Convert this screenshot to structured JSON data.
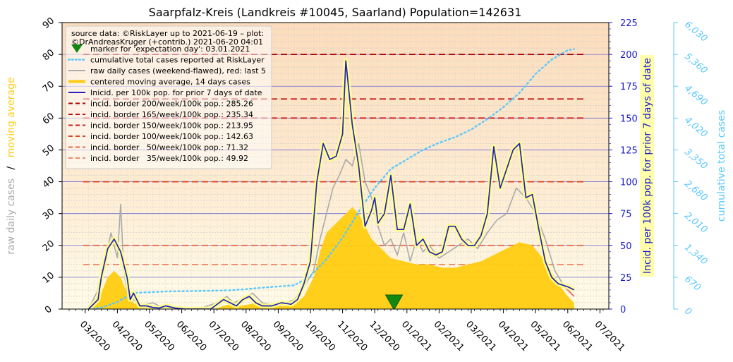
{
  "chart_data": {
    "type": "line",
    "title": "Saarpfalz-Kreis (Landkreis #10045, Saarland) Population=142631",
    "left_axis": {
      "label_part1": "raw daily cases",
      "label_sep": "/",
      "label_part2": "moving average",
      "ylim": [
        0,
        90
      ],
      "ticks": [
        "0",
        "10",
        "20",
        "30",
        "40",
        "50",
        "60",
        "70",
        "80",
        "90"
      ]
    },
    "right_axis": {
      "label": "Incid. per 100k pop. for prior 7 days of date",
      "ylim": [
        0,
        225
      ],
      "ticks": [
        "0",
        "25",
        "50",
        "75",
        "100",
        "125",
        "150",
        "175",
        "200",
        "225"
      ]
    },
    "cumulative_axis": {
      "label": "cumulative total cases",
      "ylim": [
        0,
        6030
      ],
      "ticks": [
        "0",
        "670",
        "1,340",
        "2,010",
        "2,680",
        "3,350",
        "4,020",
        "4,690",
        "5,360",
        "6,030"
      ]
    },
    "x_axis": {
      "ticks": [
        "03/2020",
        "04/2020",
        "05/2020",
        "06/2020",
        "07/2020",
        "08/2020",
        "09/2020",
        "10/2020",
        "11/2020",
        "12/2020",
        "01/2021",
        "02/2021",
        "03/2021",
        "04/2021",
        "05/2021",
        "06/2021",
        "07/2021"
      ]
    },
    "legend": {
      "placement": "top-left",
      "source_line1": "source data: ©RiskLayer up to 2021-06-19 – plot:",
      "source_line2": "©DrAndreasKruger (+contrib.) 2021-06-20 04:01",
      "entries": [
        {
          "label": "marker for 'expectation day': 03.01.2021",
          "color": "#118811",
          "style": "marker"
        },
        {
          "label": "cumulative total cases reported at RiskLayer",
          "color": "#5ac8ff",
          "style": "dotted"
        },
        {
          "label": "raw daily cases (weekend-flawed), red: last 5",
          "color": "#aaaaaa",
          "style": "solid"
        },
        {
          "label": "centered moving average, 14 days cases",
          "color": "#ffcc11",
          "style": "thick"
        },
        {
          "label": "Inicid. per 100k pop. for prior 7 days of date",
          "color": "#2222bb",
          "style": "solid"
        },
        {
          "label": "incid. border 200/week/100k pop.: 285.26",
          "color": "#aa0000",
          "style": "dashed"
        },
        {
          "label": "incid. border 165/week/100k pop.: 235.34",
          "color": "#c01010",
          "style": "dashed"
        },
        {
          "label": "incid. border 150/week/100k pop.: 213.95",
          "color": "#cc2222",
          "style": "dashed"
        },
        {
          "label": "incid. border 100/week/100k pop.: 142.63",
          "color": "#dd4422",
          "style": "dashed"
        },
        {
          "label": "incid. border   50/week/100k pop.: 71.32",
          "color": "#e86644",
          "style": "dashed"
        },
        {
          "label": "incid. border   35/week/100k pop.: 49.92",
          "color": "#ee8866",
          "style": "dashed"
        }
      ]
    },
    "borders_left_units": [
      {
        "name": "200",
        "value": 80.0,
        "color": "#aa0000"
      },
      {
        "name": "165",
        "value": 66.0,
        "color": "#c01010"
      },
      {
        "name": "150",
        "value": 60.0,
        "color": "#cc2222"
      },
      {
        "name": "100",
        "value": 40.0,
        "color": "#dd4422"
      },
      {
        "name": "50",
        "value": 20.0,
        "color": "#e86644"
      },
      {
        "name": "35",
        "value": 14.0,
        "color": "#ee8866"
      }
    ],
    "expectation_marker": {
      "month_index": 10.1,
      "value": 0
    },
    "incidence_series": {
      "name": "Inicid. per 100k pop. for prior 7 days of date",
      "x_month_index": [
        0.6,
        0.9,
        1.0,
        1.2,
        1.4,
        1.6,
        1.8,
        1.9,
        2.0,
        2.2,
        2.4,
        2.6,
        2.8,
        3.0,
        3.3,
        3.6,
        4.0,
        4.4,
        4.8,
        5.0,
        5.2,
        5.4,
        5.6,
        5.8,
        6.0,
        6.3,
        6.6,
        6.9,
        7.1,
        7.3,
        7.5,
        7.7,
        7.9,
        8.1,
        8.3,
        8.5,
        8.6,
        8.8,
        9.0,
        9.2,
        9.4,
        9.5,
        9.6,
        9.8,
        10.0,
        10.2,
        10.4,
        10.6,
        10.8,
        11.0,
        11.2,
        11.4,
        11.6,
        11.8,
        12.0,
        12.2,
        12.4,
        12.6,
        12.8,
        13.0,
        13.2,
        13.4,
        13.6,
        13.8,
        14.0,
        14.2,
        14.4,
        14.6,
        14.8,
        15.0,
        15.2,
        15.5,
        15.7
      ],
      "values": [
        0,
        3,
        10,
        19,
        22,
        18,
        10,
        3,
        5,
        1,
        1,
        0.5,
        0.3,
        1,
        0.3,
        0,
        0,
        0,
        3,
        2,
        1,
        3,
        4,
        2,
        1,
        1,
        2,
        1.5,
        3,
        8,
        15,
        40,
        52,
        47,
        48,
        55,
        78,
        58,
        45,
        26,
        31,
        35,
        27,
        30,
        42,
        25,
        25,
        33,
        20,
        22,
        18,
        17,
        18,
        26,
        26,
        22,
        20,
        20,
        23,
        30,
        51,
        38,
        44,
        50,
        52,
        35,
        36,
        25,
        15,
        10,
        8,
        7,
        6
      ]
    },
    "moving_average_series": {
      "name": "centered moving average, 14 days cases",
      "x_month_index": [
        0.6,
        1.0,
        1.2,
        1.4,
        1.6,
        1.8,
        2.0,
        2.2,
        2.4,
        2.6,
        3.0,
        3.5,
        4.0,
        4.5,
        4.8,
        5.0,
        5.3,
        5.6,
        5.8,
        6.1,
        6.4,
        6.7,
        7.0,
        7.3,
        7.6,
        7.8,
        8.0,
        8.2,
        8.4,
        8.6,
        8.8,
        9.0,
        9.2,
        9.4,
        9.6,
        9.8,
        10.0,
        10.4,
        10.8,
        11.2,
        11.6,
        12.0,
        12.4,
        12.8,
        13.2,
        13.6,
        14.0,
        14.4,
        14.8,
        15.2,
        15.5,
        15.7
      ],
      "values": [
        0,
        5,
        10,
        12,
        10,
        5,
        2,
        1,
        0.5,
        0.3,
        0.3,
        0.2,
        0,
        0,
        1,
        1.5,
        1,
        1.5,
        2,
        1.5,
        1,
        1,
        1.5,
        4,
        10,
        18,
        24,
        26,
        28,
        30,
        32,
        30,
        26,
        22,
        20,
        18,
        16,
        15,
        14,
        14,
        13,
        13,
        14,
        15,
        17,
        19,
        21,
        20,
        15,
        8,
        4,
        2
      ]
    },
    "raw_daily_series": {
      "name": "raw daily cases (weekend-flawed), red: last 5",
      "x_month_index": [
        0.6,
        0.9,
        1.1,
        1.3,
        1.5,
        1.6,
        1.7,
        1.8,
        2.0,
        2.2,
        2.6,
        3.0,
        3.5,
        4.0,
        4.6,
        4.9,
        5.1,
        5.4,
        5.7,
        6.0,
        6.5,
        7.0,
        7.3,
        7.6,
        7.8,
        8.0,
        8.2,
        8.4,
        8.6,
        8.8,
        9.0,
        9.2,
        9.4,
        9.6,
        9.8,
        10.0,
        10.2,
        10.4,
        10.6,
        10.8,
        11.0,
        11.2,
        11.5,
        11.8,
        12.1,
        12.4,
        12.7,
        13.0,
        13.3,
        13.6,
        13.9,
        14.2,
        14.5,
        14.8,
        15.1,
        15.4,
        15.7
      ],
      "values": [
        0,
        6,
        14,
        24,
        16,
        33,
        12,
        5,
        3,
        1,
        2,
        0,
        0,
        0,
        2,
        4,
        2,
        3,
        5,
        2,
        1,
        3,
        7,
        12,
        22,
        30,
        38,
        42,
        47,
        45,
        52,
        40,
        35,
        26,
        20,
        22,
        17,
        24,
        15,
        22,
        18,
        20,
        16,
        18,
        20,
        22,
        19,
        24,
        28,
        30,
        38,
        35,
        30,
        22,
        12,
        7,
        4
      ]
    },
    "cumulative_series": {
      "name": "cumulative total cases reported at RiskLayer",
      "x_month_index": [
        0.6,
        1.0,
        1.5,
        2.0,
        3.0,
        4.0,
        5.0,
        5.5,
        6.0,
        7.0,
        7.5,
        8.0,
        8.5,
        9.0,
        9.5,
        10.0,
        10.5,
        11.0,
        11.5,
        12.0,
        12.5,
        13.0,
        13.5,
        14.0,
        14.5,
        15.0,
        15.5,
        15.7
      ],
      "values": [
        0,
        30,
        150,
        340,
        370,
        380,
        395,
        420,
        450,
        500,
        700,
        1050,
        1500,
        2050,
        2550,
        2950,
        3150,
        3350,
        3500,
        3620,
        3780,
        4000,
        4250,
        4550,
        4950,
        5250,
        5450,
        5470
      ]
    }
  }
}
